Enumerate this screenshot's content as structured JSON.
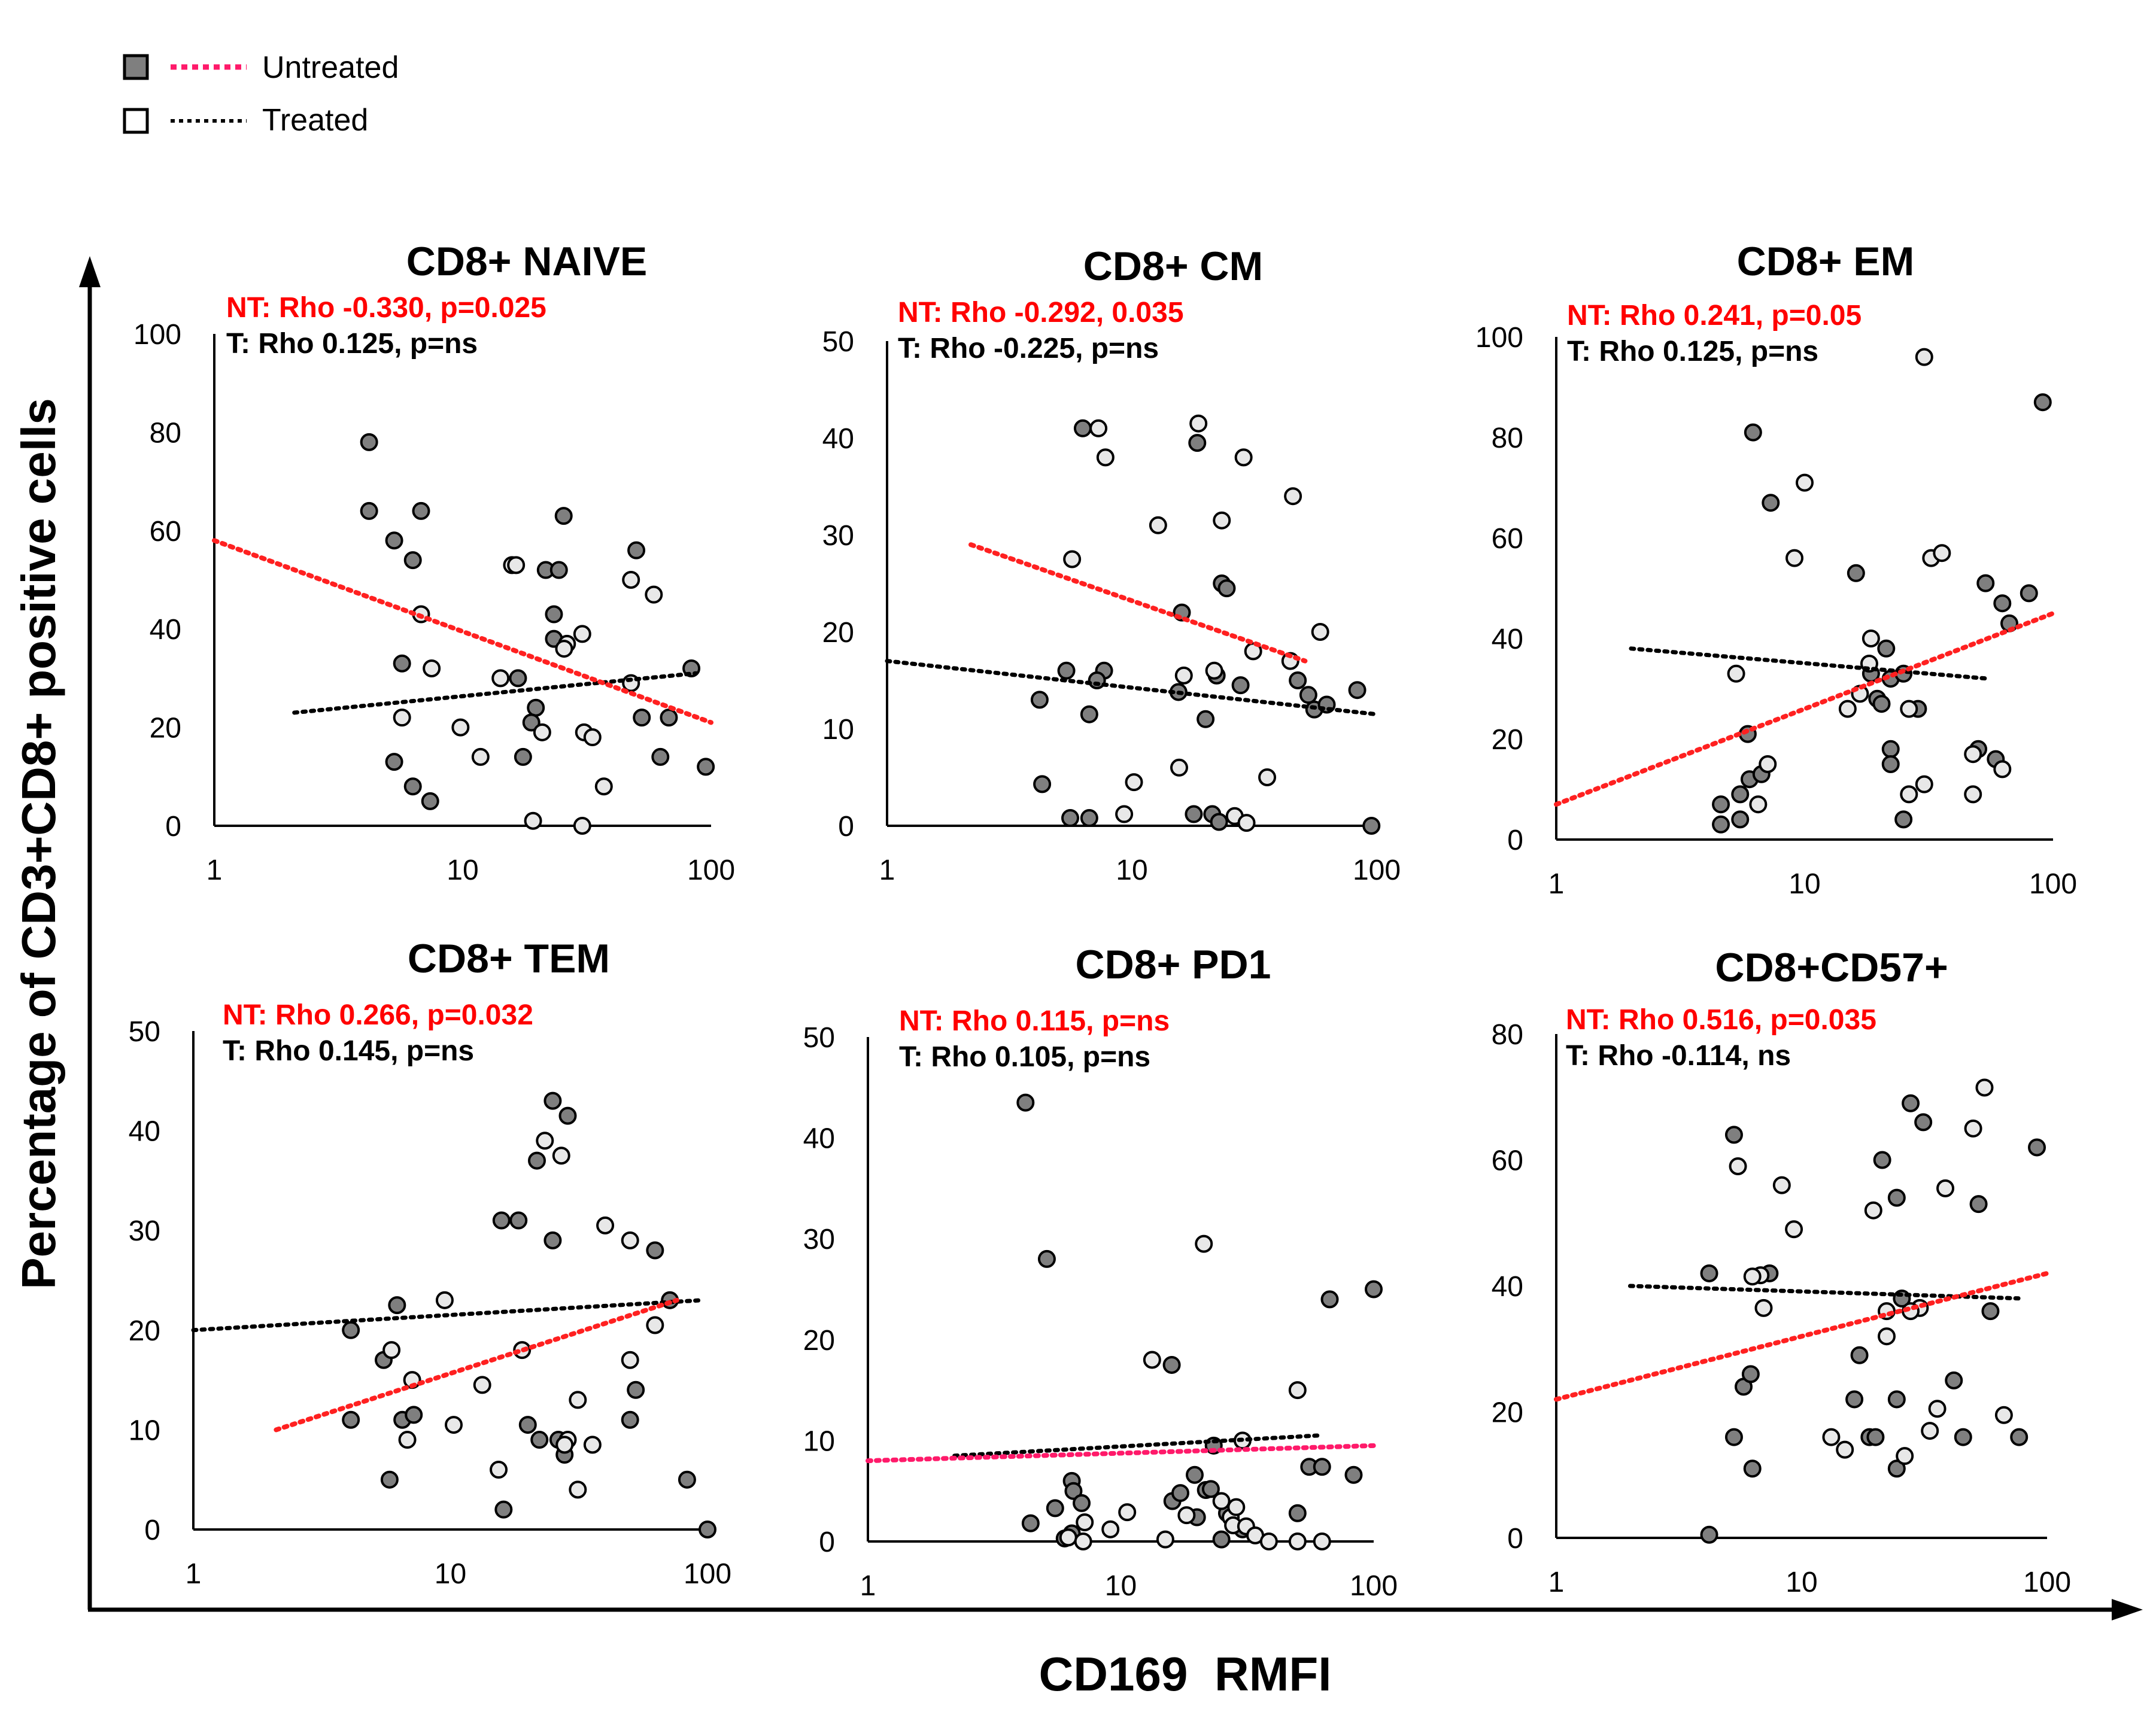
{
  "colors": {
    "untreated_fill": "#7f7f7f",
    "treated_fill": "#e8e8e8",
    "marker_stroke": "#000000",
    "untreated_line": "#ff2020",
    "untreated_legend_line": "#ff1a6a",
    "treated_line": "#000000",
    "nt_text": "#ff0000",
    "t_text": "#000000"
  },
  "legend": {
    "untreated": "Untreated",
    "treated": "Treated"
  },
  "axes": {
    "xlabel": "CD169  RMFI",
    "ylabel": "Percentage of CD3+CD8+ positive cells"
  },
  "chart_data": [
    {
      "type": "scatter",
      "title": "CD8+ NAIVE",
      "nt_stat": "NT: Rho -0.330, p=0.025",
      "t_stat": "T: Rho 0.125, p=ns",
      "xscale": "log",
      "xlim": [
        1,
        100
      ],
      "ylim": [
        0,
        100
      ],
      "yticks": [
        0,
        20,
        40,
        60,
        80,
        100
      ],
      "xticks": [
        1,
        10,
        100
      ],
      "untreated": [
        [
          4.2,
          78
        ],
        [
          4.2,
          64
        ],
        [
          5.3,
          58
        ],
        [
          6.3,
          54
        ],
        [
          6.8,
          64
        ],
        [
          5.7,
          33
        ],
        [
          6.3,
          8
        ],
        [
          7.4,
          5
        ],
        [
          5.3,
          13
        ],
        [
          21.6,
          52
        ],
        [
          23.3,
          43
        ],
        [
          23.3,
          38
        ],
        [
          25.5,
          63
        ],
        [
          24.4,
          52
        ],
        [
          19.7,
          24
        ],
        [
          18.9,
          21
        ],
        [
          16.7,
          30
        ],
        [
          17.5,
          14
        ],
        [
          50,
          56
        ],
        [
          52.6,
          22
        ],
        [
          62.5,
          14
        ],
        [
          67.6,
          22
        ],
        [
          83.3,
          32
        ],
        [
          95.2,
          12
        ]
      ],
      "treated": [
        [
          6.8,
          43
        ],
        [
          7.5,
          32
        ],
        [
          5.7,
          22
        ],
        [
          9.8,
          20
        ],
        [
          11.8,
          14
        ],
        [
          14.2,
          30
        ],
        [
          15.8,
          53
        ],
        [
          16.4,
          53
        ],
        [
          20.9,
          19
        ],
        [
          26.3,
          37
        ],
        [
          25.6,
          36
        ],
        [
          30.3,
          39
        ],
        [
          30.8,
          19
        ],
        [
          33.3,
          18
        ],
        [
          37,
          8
        ],
        [
          47.6,
          50
        ],
        [
          47.6,
          29
        ],
        [
          58.8,
          47
        ],
        [
          19.2,
          1
        ],
        [
          30.3,
          0
        ]
      ],
      "untreated_fit": [
        [
          1,
          58
        ],
        [
          100,
          21
        ]
      ],
      "treated_fit": [
        [
          2.1,
          23
        ],
        [
          87,
          31
        ]
      ]
    },
    {
      "type": "scatter",
      "title": "CD8+ CM",
      "nt_stat": "NT: Rho -0.292, 0.035",
      "t_stat": "T: Rho -0.225, p=ns",
      "xscale": "log",
      "xlim": [
        1,
        100
      ],
      "ylim": [
        0,
        50
      ],
      "yticks": [
        0,
        10,
        20,
        30,
        40,
        50
      ],
      "xticks": [
        1,
        10,
        100
      ],
      "untreated": [
        [
          6.3,
          41
        ],
        [
          18.5,
          39.5
        ],
        [
          16,
          22
        ],
        [
          23.3,
          25
        ],
        [
          24.4,
          24.5
        ],
        [
          5.4,
          16
        ],
        [
          7.7,
          16
        ],
        [
          7.2,
          15
        ],
        [
          6.7,
          11.5
        ],
        [
          4.2,
          13
        ],
        [
          4.3,
          4.3
        ],
        [
          5.6,
          0.8
        ],
        [
          6.7,
          0.8
        ],
        [
          17.9,
          1.2
        ],
        [
          21.3,
          1.2
        ],
        [
          22.7,
          0.4
        ],
        [
          15.5,
          13.8
        ],
        [
          20,
          11
        ],
        [
          22.2,
          15.5
        ],
        [
          27.8,
          14.5
        ],
        [
          47.6,
          15
        ],
        [
          52.6,
          13.5
        ],
        [
          55.6,
          12
        ],
        [
          62.5,
          12.5
        ],
        [
          83.3,
          14
        ],
        [
          95.2,
          0
        ]
      ],
      "treated": [
        [
          7.3,
          41
        ],
        [
          7.8,
          38
        ],
        [
          5.7,
          27.5
        ],
        [
          12.8,
          31
        ],
        [
          18.7,
          41.5
        ],
        [
          23.3,
          31.5
        ],
        [
          28.6,
          38
        ],
        [
          45.5,
          34
        ],
        [
          58.8,
          20
        ],
        [
          21.7,
          16
        ],
        [
          31.3,
          18
        ],
        [
          44.4,
          17
        ],
        [
          15.6,
          6
        ],
        [
          10.2,
          4.5
        ],
        [
          9.3,
          1.2
        ],
        [
          26.3,
          1
        ],
        [
          29.4,
          0.3
        ],
        [
          35.7,
          5
        ],
        [
          16.3,
          15.5
        ]
      ],
      "untreated_fit": [
        [
          2.2,
          29
        ],
        [
          51,
          17
        ]
      ],
      "treated_fit": [
        [
          1,
          17
        ],
        [
          100,
          11.5
        ]
      ]
    },
    {
      "type": "scatter",
      "title": "CD8+ EM",
      "nt_stat": "NT: Rho 0.241, p=0.05",
      "t_stat": "T: Rho 0.125, p=ns",
      "xscale": "log",
      "xlim": [
        1,
        100
      ],
      "ylim": [
        0,
        100
      ],
      "yticks": [
        0,
        20,
        40,
        60,
        80,
        100
      ],
      "xticks": [
        1,
        10,
        100
      ],
      "untreated": [
        [
          6.2,
          81
        ],
        [
          7.3,
          67
        ],
        [
          16.1,
          53
        ],
        [
          53.5,
          51
        ],
        [
          62.5,
          47
        ],
        [
          66.7,
          43
        ],
        [
          80,
          49
        ],
        [
          90.9,
          87
        ],
        [
          4.6,
          7
        ],
        [
          4.6,
          3
        ],
        [
          5.5,
          9
        ],
        [
          5.5,
          4
        ],
        [
          6,
          12
        ],
        [
          6.7,
          13
        ],
        [
          5.9,
          21
        ],
        [
          21.3,
          38
        ],
        [
          18.5,
          33
        ],
        [
          19.6,
          28
        ],
        [
          20.4,
          27
        ],
        [
          22.2,
          32
        ],
        [
          25,
          33
        ],
        [
          28.6,
          26
        ],
        [
          22.2,
          18
        ],
        [
          22.2,
          15
        ],
        [
          25,
          4
        ],
        [
          50,
          18
        ],
        [
          58.8,
          16
        ]
      ],
      "treated": [
        [
          5.3,
          33
        ],
        [
          6.5,
          7
        ],
        [
          7.1,
          15
        ],
        [
          9.1,
          56
        ],
        [
          10,
          71
        ],
        [
          14.9,
          26
        ],
        [
          16.7,
          29
        ],
        [
          18.5,
          40
        ],
        [
          18.2,
          35
        ],
        [
          30.3,
          96
        ],
        [
          32.3,
          56
        ],
        [
          35.7,
          57
        ],
        [
          26.3,
          26
        ],
        [
          26.3,
          9
        ],
        [
          30.3,
          11
        ],
        [
          47.6,
          17
        ],
        [
          62.5,
          14
        ],
        [
          47.6,
          9
        ]
      ],
      "untreated_fit": [
        [
          1,
          7
        ],
        [
          100,
          45
        ]
      ],
      "treated_fit": [
        [
          2,
          38
        ],
        [
          55,
          32
        ]
      ]
    },
    {
      "type": "scatter",
      "title": "CD8+ TEM",
      "nt_stat": "NT: Rho 0.266, p=0.032",
      "t_stat": "T: Rho 0.145, p=ns",
      "xscale": "log",
      "xlim": [
        1,
        100
      ],
      "ylim": [
        0,
        50
      ],
      "yticks": [
        0,
        10,
        20,
        30,
        40,
        50
      ],
      "xticks": [
        1,
        10,
        100
      ],
      "untreated": [
        [
          4.1,
          20
        ],
        [
          4.1,
          11
        ],
        [
          5.5,
          17
        ],
        [
          6.2,
          22.5
        ],
        [
          6.5,
          11
        ],
        [
          7.2,
          11.5
        ],
        [
          5.8,
          5
        ],
        [
          18.4,
          31
        ],
        [
          15.8,
          31
        ],
        [
          21.7,
          37
        ],
        [
          25,
          43
        ],
        [
          28.6,
          41.5
        ],
        [
          25,
          29
        ],
        [
          20,
          10.5
        ],
        [
          22.2,
          9
        ],
        [
          26.3,
          9
        ],
        [
          27.8,
          7.5
        ],
        [
          16.1,
          2
        ],
        [
          52.6,
          14
        ],
        [
          50,
          11
        ],
        [
          62.5,
          28
        ],
        [
          71.4,
          23
        ],
        [
          83.3,
          5
        ],
        [
          100,
          0
        ]
      ],
      "treated": [
        [
          5.9,
          18
        ],
        [
          6.8,
          9
        ],
        [
          7.1,
          15
        ],
        [
          9.5,
          23
        ],
        [
          10.3,
          10.5
        ],
        [
          13.3,
          14.5
        ],
        [
          15.4,
          6
        ],
        [
          19,
          18
        ],
        [
          23.3,
          39
        ],
        [
          27,
          37.5
        ],
        [
          28.6,
          9
        ],
        [
          27.8,
          8.5
        ],
        [
          31.3,
          13
        ],
        [
          31.3,
          4
        ],
        [
          35.7,
          8.5
        ],
        [
          40,
          30.5
        ],
        [
          50,
          17
        ],
        [
          50,
          29
        ],
        [
          62.5,
          20.5
        ]
      ],
      "untreated_fit": [
        [
          2.1,
          10
        ],
        [
          76,
          23
        ]
      ],
      "treated_fit": [
        [
          1,
          20
        ],
        [
          95,
          23
        ]
      ]
    },
    {
      "type": "scatter",
      "title": "CD8+ PD1",
      "nt_stat": "NT: Rho 0.115, p=ns",
      "t_stat": "T: Rho 0.105, p=ns",
      "xscale": "log",
      "xlim": [
        1,
        100
      ],
      "ylim": [
        0,
        50
      ],
      "yticks": [
        0,
        10,
        20,
        30,
        40,
        50
      ],
      "xticks": [
        1,
        10,
        100
      ],
      "untreated": [
        [
          4.2,
          43.5
        ],
        [
          5.1,
          28
        ],
        [
          4.4,
          1.8
        ],
        [
          5.5,
          3.3
        ],
        [
          6.4,
          6
        ],
        [
          6.5,
          5
        ],
        [
          6.4,
          0.8
        ],
        [
          6,
          0.3
        ],
        [
          7,
          3.8
        ],
        [
          15.9,
          17.5
        ],
        [
          16,
          4
        ],
        [
          17.2,
          4.8
        ],
        [
          19.6,
          6.6
        ],
        [
          21.7,
          5.1
        ],
        [
          22.7,
          5.2
        ],
        [
          20,
          2.4
        ],
        [
          23.3,
          9.5
        ],
        [
          25,
          0.2
        ],
        [
          26.3,
          2.8
        ],
        [
          30.3,
          1.2
        ],
        [
          50,
          2.8
        ],
        [
          55.6,
          7.4
        ],
        [
          62.5,
          7.4
        ],
        [
          67,
          24
        ],
        [
          83.3,
          6.6
        ],
        [
          100,
          25
        ]
      ],
      "treated": [
        [
          6.2,
          0.4
        ],
        [
          7.2,
          1.9
        ],
        [
          7.1,
          0
        ],
        [
          9.1,
          1.2
        ],
        [
          10.6,
          2.9
        ],
        [
          13.3,
          18
        ],
        [
          15,
          0.2
        ],
        [
          18.2,
          2.6
        ],
        [
          21.3,
          29.5
        ],
        [
          25,
          4
        ],
        [
          27.2,
          2.4
        ],
        [
          27.8,
          1.6
        ],
        [
          28.6,
          3.4
        ],
        [
          30.3,
          10
        ],
        [
          31.3,
          1.5
        ],
        [
          34,
          0.6
        ],
        [
          38.5,
          0
        ],
        [
          50,
          0
        ],
        [
          62.5,
          0
        ],
        [
          50,
          15
        ]
      ],
      "untreated_fit": [
        [
          1,
          8
        ],
        [
          100,
          9.5
        ]
      ],
      "treated_fit": [
        [
          2.2,
          8.5
        ],
        [
          60,
          10.5
        ]
      ]
    },
    {
      "type": "scatter",
      "title": "CD8+CD57+",
      "nt_stat": "NT: Rho 0.516, p=0.035",
      "t_stat": "T: Rho -0.114, ns",
      "xscale": "log",
      "xlim": [
        1,
        100
      ],
      "ylim": [
        0,
        80
      ],
      "yticks": [
        0,
        20,
        40,
        60,
        80
      ],
      "xticks": [
        1,
        10,
        100
      ],
      "untreated": [
        [
          4.2,
          42
        ],
        [
          5.3,
          64
        ],
        [
          5.3,
          16
        ],
        [
          5.8,
          24
        ],
        [
          6.2,
          26
        ],
        [
          6.3,
          11
        ],
        [
          7.4,
          42
        ],
        [
          16.4,
          22
        ],
        [
          17.2,
          29
        ],
        [
          18.9,
          16
        ],
        [
          21.3,
          60
        ],
        [
          20,
          16
        ],
        [
          24.4,
          54
        ],
        [
          24.4,
          11
        ],
        [
          25.6,
          38
        ],
        [
          27.8,
          69
        ],
        [
          31.3,
          66
        ],
        [
          41.7,
          25
        ],
        [
          45.5,
          16
        ],
        [
          52.6,
          53
        ],
        [
          58.8,
          36
        ],
        [
          76.9,
          16
        ],
        [
          90.9,
          62
        ],
        [
          4.2,
          0.5
        ],
        [
          24.4,
          22
        ]
      ],
      "treated": [
        [
          5.5,
          59
        ],
        [
          6.8,
          41.7
        ],
        [
          6.3,
          41.5
        ],
        [
          7,
          36.5
        ],
        [
          8.3,
          56
        ],
        [
          9.3,
          49
        ],
        [
          13.2,
          16
        ],
        [
          15,
          14
        ],
        [
          19.6,
          52
        ],
        [
          22.2,
          32
        ],
        [
          26.3,
          13
        ],
        [
          30.3,
          36.5
        ],
        [
          33.3,
          17
        ],
        [
          35.7,
          20.5
        ],
        [
          38.5,
          55.5
        ],
        [
          50,
          65
        ],
        [
          55.6,
          71.5
        ],
        [
          66.7,
          19.5
        ],
        [
          27.8,
          36
        ],
        [
          22.2,
          36
        ]
      ],
      "untreated_fit": [
        [
          1,
          22
        ],
        [
          100,
          42
        ]
      ],
      "treated_fit": [
        [
          2,
          40
        ],
        [
          80,
          38
        ]
      ]
    }
  ]
}
